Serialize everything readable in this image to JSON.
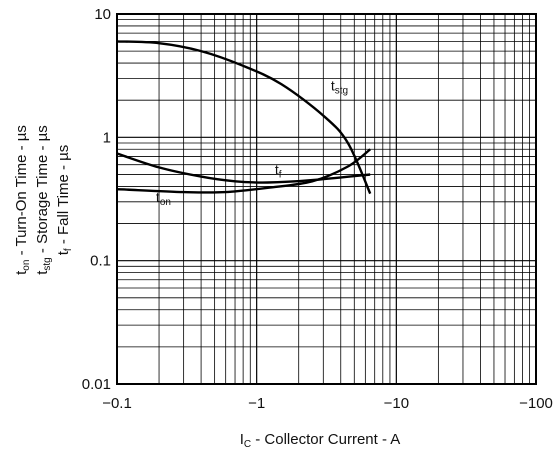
{
  "chart_data": {
    "type": "line",
    "title": "",
    "xscale": "log",
    "yscale": "log",
    "xlim": [
      -0.1,
      -100
    ],
    "ylim": [
      0.01,
      10
    ],
    "grid": true,
    "xlabel": {
      "prefix": "I",
      "sub": "C",
      "rest": " - Collector Current - A"
    },
    "ylabel_lines": [
      {
        "prefix": "t",
        "sub": "on",
        "rest": " - Turn-On Time - µs"
      },
      {
        "prefix": "t",
        "sub": "stg",
        "rest": " - Storage Time - µs"
      },
      {
        "prefix": "t",
        "sub": "f",
        "rest": " - Fall Time - µs"
      }
    ],
    "x_ticks": [
      {
        "value": -0.1,
        "label": "−0.1"
      },
      {
        "value": -1,
        "label": "−1"
      },
      {
        "value": -10,
        "label": "−10"
      },
      {
        "value": -100,
        "label": "−100"
      }
    ],
    "y_ticks": [
      {
        "value": 0.01,
        "label": "0.01"
      },
      {
        "value": 0.1,
        "label": "0.1"
      },
      {
        "value": 1,
        "label": "1"
      },
      {
        "value": 10,
        "label": "10"
      }
    ],
    "series": [
      {
        "name": "tstg",
        "label_prefix": "t",
        "label_sub": "stg",
        "label_at": {
          "x": -3.4,
          "y": 2.4
        },
        "points": [
          [
            -0.1,
            6.0
          ],
          [
            -0.2,
            5.8
          ],
          [
            -0.4,
            5.0
          ],
          [
            -0.8,
            3.8
          ],
          [
            -1.5,
            2.7
          ],
          [
            -3.0,
            1.5
          ],
          [
            -4.5,
            0.9
          ],
          [
            -6.5,
            0.35
          ]
        ]
      },
      {
        "name": "tf",
        "label_prefix": "t",
        "label_sub": "f",
        "label_at": {
          "x": -1.35,
          "y": 0.5
        },
        "points": [
          [
            -0.1,
            0.74
          ],
          [
            -0.2,
            0.57
          ],
          [
            -0.4,
            0.48
          ],
          [
            -0.7,
            0.44
          ],
          [
            -1.2,
            0.43
          ],
          [
            -2.5,
            0.45
          ],
          [
            -6.5,
            0.5
          ]
        ]
      },
      {
        "name": "ton",
        "label_prefix": "t",
        "label_sub": "on",
        "label_at": {
          "x": -0.19,
          "y": 0.3
        },
        "points": [
          [
            -0.1,
            0.38
          ],
          [
            -0.3,
            0.36
          ],
          [
            -0.6,
            0.36
          ],
          [
            -1.2,
            0.39
          ],
          [
            -2.5,
            0.44
          ],
          [
            -4.5,
            0.58
          ],
          [
            -6.5,
            0.8
          ]
        ]
      }
    ]
  }
}
